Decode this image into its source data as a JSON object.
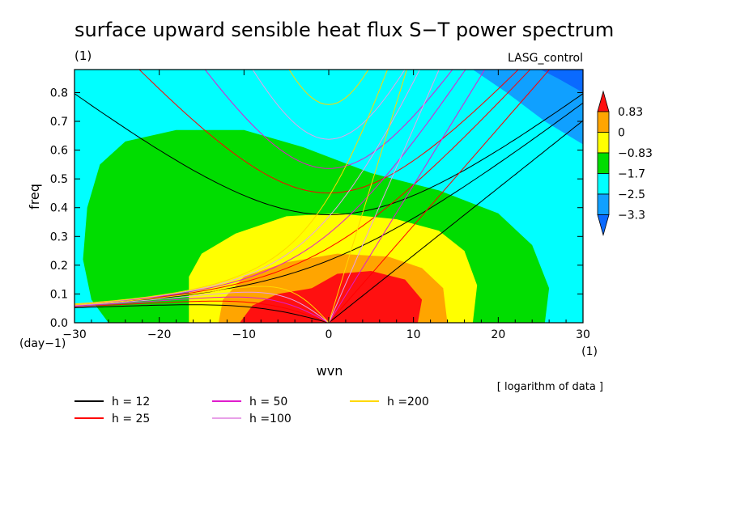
{
  "title": "surface upward sensible heat flux S−T power spectrum",
  "units_label": "(1)",
  "run_label": "LASG_control",
  "note": "[ logarithm of data ]",
  "chart_data": {
    "type": "heatmap",
    "title": "surface upward sensible heat flux S−T power spectrum",
    "xlabel": "wvn",
    "ylabel": "freq",
    "x_unit": "(1)",
    "y_unit": "(day−1)",
    "xlim": [
      -30,
      30
    ],
    "ylim": [
      0,
      0.88
    ],
    "x_ticks": [
      -30,
      -20,
      -10,
      0,
      10,
      20,
      30
    ],
    "x_tick_labels": [
      "−30",
      "−20",
      "−10",
      "0",
      "10",
      "20",
      "30"
    ],
    "y_ticks": [
      0,
      0.1,
      0.2,
      0.3,
      0.4,
      0.5,
      0.6,
      0.7,
      0.8
    ],
    "y_tick_labels": [
      "0.0",
      "0.1",
      "0.2",
      "0.3",
      "0.4",
      "0.5",
      "0.6",
      "0.7",
      "0.8"
    ],
    "colorbar": {
      "levels": [
        0.83,
        0,
        -0.83,
        -1.7,
        -2.5,
        -3.3
      ],
      "level_labels": [
        "0.83",
        "0",
        "−0.83",
        "−1.7",
        "−2.5",
        "−3.3"
      ],
      "colors": [
        "#ff1010",
        "#ffa500",
        "#ffff00",
        "#00dd00",
        "#00ffff",
        "#10a0ff",
        "#0a6aff"
      ]
    },
    "dispersion_curves": [
      {
        "label": "h = 12",
        "h": 12,
        "color": "#000000"
      },
      {
        "label": "h = 25",
        "h": 25,
        "color": "#ff0000"
      },
      {
        "label": "h = 50",
        "h": 50,
        "color": "#e01ccc"
      },
      {
        "label": "h =100",
        "h": 100,
        "color": "#e8a0e8"
      },
      {
        "label": "h =200",
        "h": 200,
        "color": "#ffd800"
      }
    ]
  }
}
